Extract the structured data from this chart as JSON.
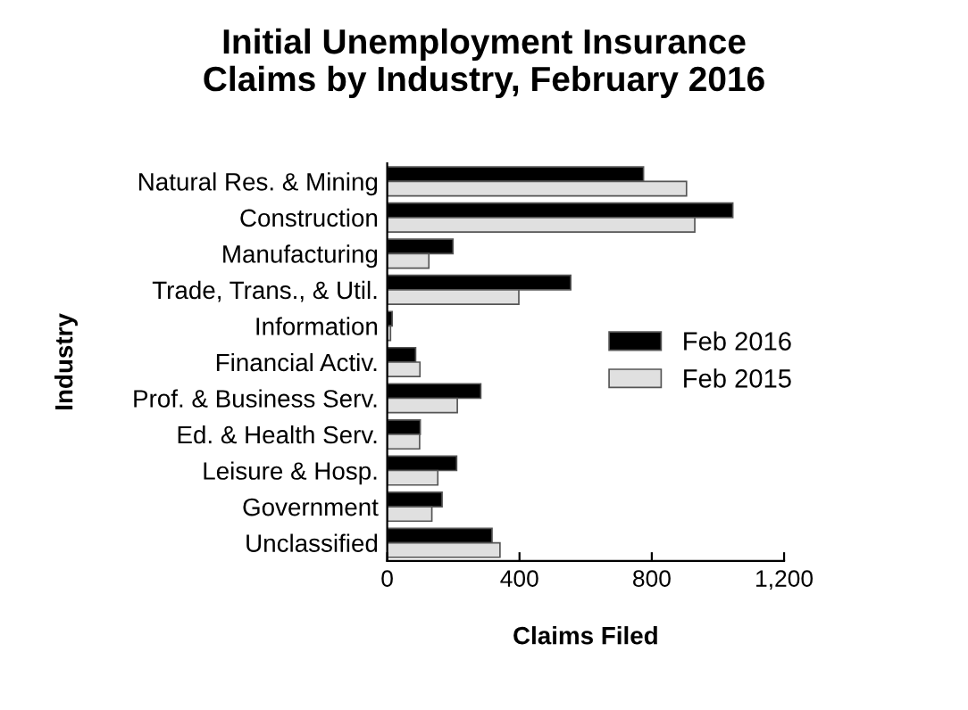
{
  "chart_data": {
    "type": "bar",
    "orientation": "horizontal",
    "title": "Initial Unemployment Insurance\nClaims by Industry, February 2016",
    "xlabel": "Claims Filed",
    "ylabel": "Industry",
    "categories": [
      "Natural Res. & Mining",
      "Construction",
      "Manufacturing",
      "Trade, Trans., & Util.",
      "Information",
      "Financial Activ.",
      "Prof. & Business Serv.",
      "Ed. & Health Serv.",
      "Leisure & Hosp.",
      "Government",
      "Unclassified"
    ],
    "series": [
      {
        "name": "Feb 2016",
        "color": "#000000",
        "values": [
          775,
          1045,
          199,
          555,
          15,
          86,
          283,
          100,
          210,
          166,
          317
        ]
      },
      {
        "name": "Feb 2015",
        "color": "#e0e0e0",
        "values": [
          905,
          930,
          126,
          398,
          10,
          99,
          212,
          98,
          153,
          135,
          341
        ]
      }
    ],
    "xlim": [
      0,
      1200
    ],
    "xticks": [
      0,
      400,
      800,
      {
        "value": 1200,
        "label": "1,200"
      }
    ],
    "grid": false,
    "legend": "right"
  }
}
